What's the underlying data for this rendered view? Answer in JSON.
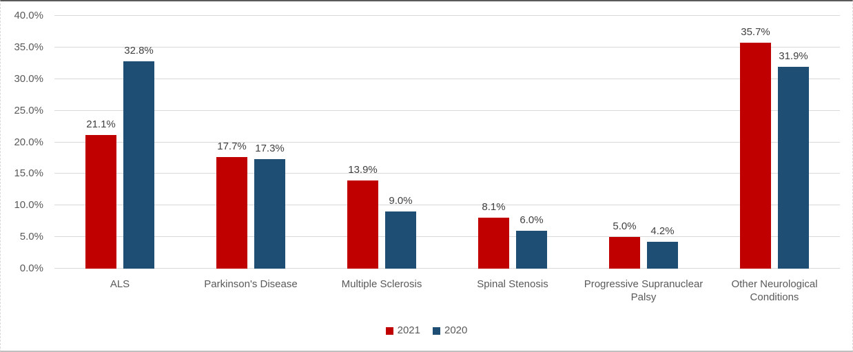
{
  "chart_data": {
    "type": "bar",
    "title": "",
    "categories": [
      "ALS",
      "Parkinson's Disease",
      "Multiple Sclerosis",
      "Spinal Stenosis",
      "Progressive Supranuclear Palsy",
      "Other Neurological Conditions"
    ],
    "series": [
      {
        "name": "2021",
        "color": "#C00000",
        "values": [
          21.1,
          17.7,
          13.9,
          8.1,
          5.0,
          35.7
        ],
        "labels": [
          "21.1%",
          "17.7%",
          "13.9%",
          "8.1%",
          "5.0%",
          "35.7%"
        ]
      },
      {
        "name": "2020",
        "color": "#1F4E74",
        "values": [
          32.8,
          17.3,
          9.0,
          6.0,
          4.2,
          31.9
        ],
        "labels": [
          "32.8%",
          "17.3%",
          "9.0%",
          "6.0%",
          "4.2%",
          "31.9%"
        ]
      }
    ],
    "ylim": [
      0,
      40
    ],
    "yticks": [
      {
        "v": 0,
        "label": "0.0%"
      },
      {
        "v": 5,
        "label": "5.0%"
      },
      {
        "v": 10,
        "label": "10.0%"
      },
      {
        "v": 15,
        "label": "15.0%"
      },
      {
        "v": 20,
        "label": "20.0%"
      },
      {
        "v": 25,
        "label": "25.0%"
      },
      {
        "v": 30,
        "label": "30.0%"
      },
      {
        "v": 35,
        "label": "35.0%"
      },
      {
        "v": 40,
        "label": "40.0%"
      }
    ],
    "grid": true,
    "legend_position": "bottom",
    "xlabel": "",
    "ylabel": ""
  },
  "colors": {
    "gridline": "#D9D9D9",
    "axis_text": "#595959",
    "data_label_text": "#404040",
    "frame_top_border": "#595959",
    "frame_bottom_border": "#BFBFBF",
    "background": "#FFFFFF"
  }
}
